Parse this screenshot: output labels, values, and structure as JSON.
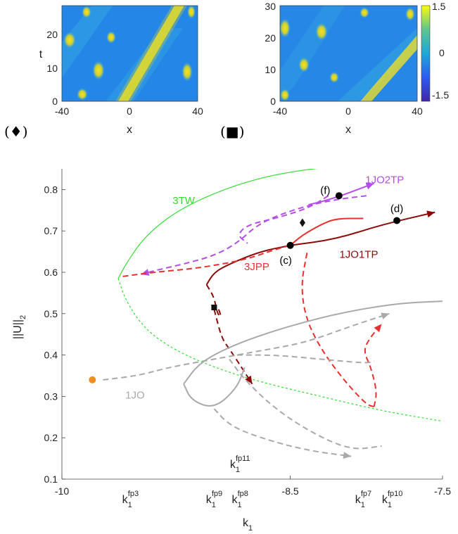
{
  "chart_data": [
    {
      "type": "heatmap",
      "panel_marker": "(♦)",
      "xlabel": "x",
      "ylabel": "t",
      "xlim": [
        -40,
        40
      ],
      "ylim": [
        0,
        28
      ],
      "xticks": [
        "-40",
        "0",
        "40"
      ],
      "yticks": [
        "0",
        "10",
        "20"
      ],
      "colormap": "parula"
    },
    {
      "type": "heatmap",
      "panel_marker": "(■)",
      "xlabel": "x",
      "ylabel": "",
      "xlim": [
        -40,
        40
      ],
      "ylim": [
        0,
        30
      ],
      "xticks": [
        "-40",
        "0",
        "40"
      ],
      "yticks": [
        "0",
        "10",
        "20",
        "30"
      ],
      "colorbar": {
        "ticks": [
          "1.5",
          "0",
          "-1.5"
        ],
        "range": [
          -1.5,
          1.5
        ]
      }
    },
    {
      "type": "line",
      "title": "",
      "xlabel": "k",
      "xlabel_sub": "1",
      "ylabel": "||U||",
      "ylabel_sub": "2",
      "xlim": [
        -10,
        -7.5
      ],
      "ylim": [
        0.1,
        0.85
      ],
      "xticks": [
        "-10",
        "-8.5",
        "-7.5"
      ],
      "yticks": [
        "0.1",
        "0.2",
        "0.3",
        "0.4",
        "0.5",
        "0.6",
        "0.7",
        "0.8"
      ],
      "fold_points": [
        {
          "base": "k",
          "sub": "1",
          "sup": "fp3",
          "x": -9.55
        },
        {
          "base": "k",
          "sub": "1",
          "sup": "fp9",
          "x": -9.0
        },
        {
          "base": "k",
          "sub": "1",
          "sup": "fp8",
          "x": -8.83
        },
        {
          "base": "k",
          "sub": "1",
          "sup": "fp11",
          "x": -8.83,
          "raised": true
        },
        {
          "base": "k",
          "sub": "1",
          "sup": "fp7",
          "x": -8.02
        },
        {
          "base": "k",
          "sub": "1",
          "sup": "fp10",
          "x": -7.83
        }
      ],
      "series": [
        {
          "name": "3TW",
          "color": "#33dd33",
          "points": [
            [
              -8.0,
              0.86
            ],
            [
              -8.4,
              0.85
            ],
            [
              -8.8,
              0.82
            ],
            [
              -9.2,
              0.76
            ],
            [
              -9.45,
              0.69
            ],
            [
              -9.58,
              0.62
            ],
            [
              -9.63,
              0.585
            ]
          ]
        },
        {
          "name": "3TW",
          "color": "#33dd33",
          "dashed": true,
          "points": [
            [
              -9.63,
              0.585
            ],
            [
              -9.58,
              0.53
            ],
            [
              -9.45,
              0.46
            ],
            [
              -9.25,
              0.41
            ],
            [
              -9.0,
              0.37
            ],
            [
              -8.7,
              0.335
            ],
            [
              -8.3,
              0.3
            ],
            [
              -7.9,
              0.265
            ],
            [
              -7.5,
              0.24
            ]
          ]
        },
        {
          "name": "1JO2TP",
          "color": "#b44ee8",
          "points": [
            [
              -8.38,
              0.763
            ],
            [
              -8.2,
              0.78
            ],
            [
              -7.95,
              0.815
            ]
          ]
        },
        {
          "name": "1JO2TP",
          "color": "#b44ee8",
          "dashed": true,
          "points": [
            [
              -8.0,
              0.785
            ],
            [
              -8.22,
              0.775
            ],
            [
              -8.45,
              0.755
            ],
            [
              -8.7,
              0.72
            ],
            [
              -8.85,
              0.67
            ],
            [
              -9.0,
              0.64
            ],
            [
              -9.2,
              0.62
            ],
            [
              -9.38,
              0.605
            ],
            [
              -9.48,
              0.595
            ]
          ]
        },
        {
          "name": "1JO2TP",
          "color": "#b44ee8",
          "dashed": true,
          "points": [
            [
              -8.25,
              0.785
            ],
            [
              -8.38,
              0.755
            ],
            [
              -8.6,
              0.73
            ],
            [
              -8.78,
              0.715
            ],
            [
              -8.85,
              0.69
            ],
            [
              -8.78,
              0.67
            ]
          ]
        },
        {
          "name": "1JO1TP",
          "color": "#8b0a0a",
          "points": [
            [
              -8.5,
              0.665
            ],
            [
              -8.2,
              0.68
            ],
            [
              -7.9,
              0.715
            ],
            [
              -7.55,
              0.745
            ]
          ]
        },
        {
          "name": "1JO1TP",
          "color": "#8b0a0a",
          "points": [
            [
              -8.5,
              0.665
            ],
            [
              -8.7,
              0.65
            ],
            [
              -8.9,
              0.62
            ],
            [
              -9.0,
              0.6
            ],
            [
              -9.05,
              0.57
            ]
          ]
        },
        {
          "name": "1JO1TP",
          "color": "#8b0a0a",
          "dashed": true,
          "points": [
            [
              -9.05,
              0.57
            ],
            [
              -9.0,
              0.54
            ],
            [
              -8.98,
              0.5
            ],
            [
              -8.95,
              0.49
            ],
            [
              -8.98,
              0.52
            ],
            [
              -9.02,
              0.52
            ]
          ]
        },
        {
          "name": "1JO1TP",
          "color": "#8b0a0a",
          "dashed": true,
          "points": [
            [
              -9.0,
              0.51
            ],
            [
              -8.95,
              0.44
            ],
            [
              -8.9,
              0.415
            ],
            [
              -8.82,
              0.37
            ],
            [
              -8.75,
              0.33
            ]
          ]
        },
        {
          "name": "3JPP",
          "color": "#e8302e",
          "points": [
            [
              -8.5,
              0.665
            ],
            [
              -8.42,
              0.69
            ],
            [
              -8.3,
              0.715
            ],
            [
              -8.2,
              0.73
            ],
            [
              -8.02,
              0.73
            ]
          ]
        },
        {
          "name": "3JPP",
          "color": "#e8302e",
          "dashed": true,
          "points": [
            [
              -9.6,
              0.59
            ],
            [
              -9.4,
              0.6
            ],
            [
              -9.1,
              0.61
            ],
            [
              -8.8,
              0.63
            ],
            [
              -8.6,
              0.655
            ],
            [
              -8.5,
              0.665
            ]
          ]
        },
        {
          "name": "3JPP",
          "color": "#e8302e",
          "dashed": true,
          "points": [
            [
              -8.39,
              0.647
            ],
            [
              -8.43,
              0.57
            ],
            [
              -8.4,
              0.49
            ],
            [
              -8.3,
              0.415
            ],
            [
              -8.15,
              0.34
            ],
            [
              -8.0,
              0.28
            ],
            [
              -7.95,
              0.275
            ]
          ]
        },
        {
          "name": "3JPP",
          "color": "#e8302e",
          "dashed": true,
          "points": [
            [
              -7.95,
              0.275
            ],
            [
              -7.93,
              0.31
            ],
            [
              -7.97,
              0.37
            ],
            [
              -8.02,
              0.41
            ],
            [
              -7.98,
              0.44
            ],
            [
              -7.9,
              0.475
            ]
          ]
        },
        {
          "name": "1JO",
          "color": "#a9a9a9",
          "points": [
            [
              -9.2,
              0.33
            ],
            [
              -9.1,
              0.38
            ],
            [
              -8.9,
              0.42
            ],
            [
              -8.6,
              0.46
            ],
            [
              -8.2,
              0.5
            ],
            [
              -7.8,
              0.525
            ],
            [
              -7.5,
              0.53
            ]
          ]
        },
        {
          "name": "1JO",
          "color": "#a9a9a9",
          "points": [
            [
              -9.2,
              0.33
            ],
            [
              -9.15,
              0.29
            ],
            [
              -9.0,
              0.27
            ],
            [
              -8.85,
              0.32
            ],
            [
              -8.8,
              0.37
            ]
          ]
        },
        {
          "name": "1JO",
          "color": "#a9a9a9",
          "dashed": true,
          "points": [
            [
              -9.73,
              0.34
            ],
            [
              -9.5,
              0.35
            ],
            [
              -9.3,
              0.37
            ],
            [
              -9.0,
              0.39
            ],
            [
              -8.7,
              0.41
            ],
            [
              -8.4,
              0.43
            ],
            [
              -8.1,
              0.47
            ],
            [
              -7.85,
              0.5
            ]
          ]
        },
        {
          "name": "1JO",
          "color": "#a9a9a9",
          "dashed": true,
          "points": [
            [
              -8.85,
              0.4
            ],
            [
              -8.6,
              0.4
            ],
            [
              -8.3,
              0.39
            ],
            [
              -8.0,
              0.38
            ],
            [
              -7.95,
              0.385
            ]
          ]
        },
        {
          "name": "1JO",
          "color": "#a9a9a9",
          "dashed": true,
          "points": [
            [
              -9.0,
              0.27
            ],
            [
              -8.9,
              0.23
            ],
            [
              -8.7,
              0.2
            ],
            [
              -8.4,
              0.17
            ],
            [
              -8.1,
              0.155
            ]
          ]
        },
        {
          "name": "1JO",
          "color": "#a9a9a9",
          "dashed": true,
          "points": [
            [
              -8.9,
              0.39
            ],
            [
              -8.8,
              0.34
            ],
            [
              -8.6,
              0.27
            ],
            [
              -8.35,
              0.21
            ],
            [
              -8.1,
              0.17
            ],
            [
              -7.9,
              0.18
            ]
          ]
        }
      ],
      "labels": [
        {
          "text": "3TW",
          "x": -9.2,
          "y": 0.765,
          "color": "#33dd33"
        },
        {
          "text": "1JO2TP",
          "x": -7.88,
          "y": 0.815,
          "color": "#b44ee8"
        },
        {
          "text": "1JO1TP",
          "x": -8.05,
          "y": 0.635,
          "color": "#8b0a0a"
        },
        {
          "text": "3JPP",
          "x": -8.72,
          "y": 0.605,
          "color": "#e8302e"
        },
        {
          "text": "1JO",
          "x": -9.52,
          "y": 0.295,
          "color": "#a9a9a9"
        },
        {
          "text": "(f)",
          "x": -8.27,
          "y": 0.79,
          "color": "#000000"
        },
        {
          "text": "(d)",
          "x": -7.8,
          "y": 0.745,
          "color": "#000000"
        },
        {
          "text": "(c)",
          "x": -8.53,
          "y": 0.62,
          "color": "#000000"
        }
      ],
      "points": [
        {
          "label": "(f)",
          "x": -8.18,
          "y": 0.785
        },
        {
          "label": "(d)",
          "x": -7.8,
          "y": 0.725
        },
        {
          "label": "(c)",
          "x": -8.5,
          "y": 0.665
        },
        {
          "marker": "diamond",
          "x": -8.42,
          "y": 0.72
        },
        {
          "marker": "square",
          "x": -9.0,
          "y": 0.515
        },
        {
          "marker": "orange-dot",
          "x": -9.8,
          "y": 0.34
        }
      ]
    }
  ]
}
